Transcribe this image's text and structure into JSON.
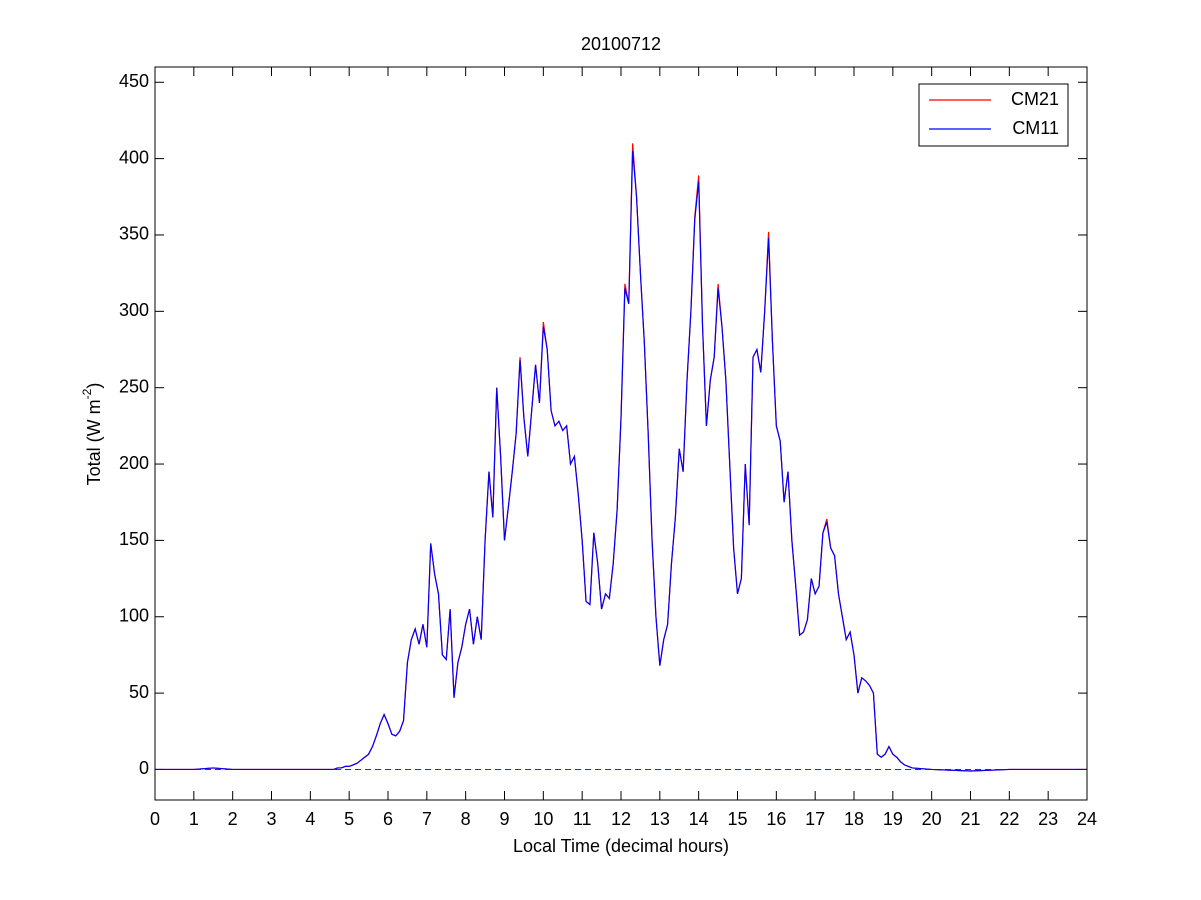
{
  "chart_data": {
    "type": "line",
    "title": "20100712",
    "xlabel": "Local Time (decimal hours)",
    "ylabel": [
      "Total (W m",
      "-2",
      ")"
    ],
    "x": [
      0,
      1,
      1.5,
      2,
      3,
      4,
      4.5,
      4.6,
      4.7,
      4.8,
      4.9,
      5.0,
      5.1,
      5.2,
      5.3,
      5.4,
      5.5,
      5.6,
      5.7,
      5.8,
      5.9,
      6.0,
      6.1,
      6.2,
      6.3,
      6.4,
      6.5,
      6.6,
      6.7,
      6.8,
      6.9,
      7.0,
      7.1,
      7.2,
      7.3,
      7.4,
      7.5,
      7.6,
      7.7,
      7.8,
      7.9,
      8.0,
      8.1,
      8.2,
      8.3,
      8.4,
      8.5,
      8.6,
      8.7,
      8.8,
      8.9,
      9.0,
      9.1,
      9.2,
      9.3,
      9.4,
      9.5,
      9.6,
      9.7,
      9.8,
      9.9,
      10.0,
      10.1,
      10.2,
      10.3,
      10.4,
      10.5,
      10.6,
      10.7,
      10.8,
      10.9,
      11.0,
      11.1,
      11.2,
      11.3,
      11.4,
      11.5,
      11.6,
      11.7,
      11.8,
      11.9,
      12.0,
      12.1,
      12.2,
      12.3,
      12.4,
      12.5,
      12.6,
      12.7,
      12.8,
      12.9,
      13.0,
      13.1,
      13.2,
      13.3,
      13.4,
      13.5,
      13.6,
      13.7,
      13.8,
      13.9,
      14.0,
      14.1,
      14.2,
      14.3,
      14.4,
      14.5,
      14.6,
      14.7,
      14.8,
      14.9,
      15.0,
      15.1,
      15.2,
      15.3,
      15.4,
      15.5,
      15.6,
      15.7,
      15.8,
      15.9,
      16.0,
      16.1,
      16.2,
      16.3,
      16.4,
      16.5,
      16.6,
      16.7,
      16.8,
      16.9,
      17.0,
      17.1,
      17.2,
      17.3,
      17.4,
      17.5,
      17.6,
      17.7,
      17.8,
      17.9,
      18.0,
      18.1,
      18.2,
      18.3,
      18.4,
      18.5,
      18.6,
      18.7,
      18.8,
      18.9,
      19.0,
      19.1,
      19.2,
      19.3,
      19.4,
      19.5,
      20,
      21,
      22,
      23,
      24
    ],
    "series": [
      {
        "name": "CM21",
        "color": "#ff0000",
        "values": [
          0,
          0,
          1,
          0,
          0,
          0,
          0,
          0,
          1,
          1,
          2,
          2,
          3,
          4,
          6,
          8,
          10,
          15,
          22,
          30,
          36,
          30,
          23,
          22,
          25,
          32,
          70,
          85,
          92,
          82,
          95,
          80,
          148,
          128,
          115,
          75,
          72,
          105,
          47,
          70,
          80,
          95,
          105,
          82,
          100,
          85,
          150,
          195,
          165,
          250,
          205,
          150,
          172,
          195,
          220,
          270,
          230,
          205,
          235,
          265,
          240,
          293,
          275,
          235,
          225,
          228,
          222,
          225,
          200,
          205,
          180,
          150,
          110,
          108,
          155,
          135,
          105,
          115,
          112,
          135,
          170,
          230,
          318,
          305,
          410,
          375,
          325,
          280,
          220,
          150,
          100,
          68,
          85,
          95,
          135,
          165,
          210,
          195,
          255,
          300,
          362,
          389,
          290,
          225,
          255,
          270,
          318,
          290,
          255,
          200,
          145,
          115,
          125,
          200,
          160,
          270,
          275,
          260,
          300,
          352,
          280,
          225,
          215,
          175,
          195,
          150,
          120,
          88,
          90,
          98,
          125,
          115,
          120,
          155,
          164,
          145,
          140,
          115,
          100,
          85,
          90,
          75,
          50,
          60,
          58,
          55,
          50,
          10,
          8,
          10,
          15,
          10,
          8,
          5,
          3,
          2,
          1,
          0,
          -1,
          0,
          0,
          0
        ]
      },
      {
        "name": "CM11",
        "color": "#0000ff",
        "values": [
          0,
          0,
          1,
          0,
          0,
          0,
          0,
          0,
          1,
          1,
          2,
          2,
          3,
          4,
          6,
          8,
          10,
          15,
          22,
          30,
          36,
          30,
          23,
          22,
          25,
          32,
          70,
          85,
          92,
          82,
          95,
          80,
          148,
          128,
          115,
          75,
          72,
          105,
          47,
          70,
          80,
          95,
          105,
          82,
          100,
          85,
          150,
          195,
          165,
          250,
          205,
          150,
          172,
          195,
          220,
          268,
          230,
          205,
          235,
          265,
          240,
          290,
          275,
          235,
          225,
          228,
          222,
          225,
          200,
          205,
          180,
          150,
          110,
          108,
          155,
          135,
          105,
          115,
          112,
          135,
          170,
          230,
          315,
          305,
          405,
          375,
          325,
          280,
          220,
          150,
          100,
          68,
          85,
          95,
          135,
          165,
          210,
          195,
          255,
          300,
          360,
          385,
          290,
          225,
          255,
          270,
          315,
          290,
          255,
          200,
          145,
          115,
          125,
          200,
          160,
          270,
          275,
          260,
          300,
          348,
          280,
          225,
          215,
          175,
          195,
          150,
          120,
          88,
          90,
          98,
          125,
          115,
          120,
          155,
          162,
          145,
          140,
          115,
          100,
          85,
          90,
          75,
          50,
          60,
          58,
          55,
          50,
          10,
          8,
          10,
          15,
          10,
          8,
          5,
          3,
          2,
          1,
          0,
          -1,
          0,
          0,
          0
        ]
      }
    ],
    "hline": {
      "value": 0,
      "color": "#c00000",
      "style": "dashed"
    },
    "xlim": [
      0,
      24
    ],
    "xticks": [
      0,
      1,
      2,
      3,
      4,
      5,
      6,
      7,
      8,
      9,
      10,
      11,
      12,
      13,
      14,
      15,
      16,
      17,
      18,
      19,
      20,
      21,
      22,
      23,
      24
    ],
    "ylim": [
      -20,
      460
    ],
    "yticks": [
      0,
      50,
      100,
      150,
      200,
      250,
      300,
      350,
      400,
      450
    ],
    "grid": false,
    "legend": "upper right"
  }
}
